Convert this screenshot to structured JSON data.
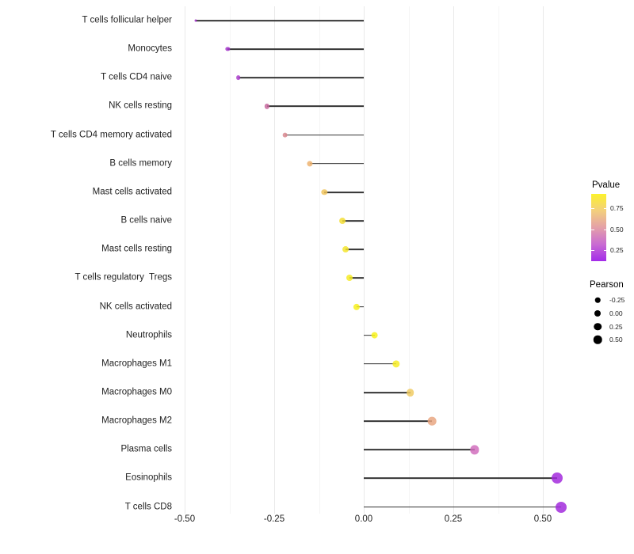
{
  "chart_data": {
    "type": "scatter",
    "style": "lollipop",
    "title": "",
    "xlabel": "",
    "ylabel": "",
    "grid": "vertical major and minor, no axis lines",
    "xlim": [
      -0.595,
      0.566
    ],
    "x_ticks": [
      -0.5,
      -0.25,
      0.0,
      0.25,
      0.5
    ],
    "x_tick_labels": [
      "-0.50",
      "-0.25",
      "0.00",
      "0.25",
      "0.50"
    ],
    "x_minor_ticks": [
      -0.375,
      -0.125,
      0.125,
      0.375
    ],
    "stem_color": "#333333",
    "categories": [
      "T cells follicular helper",
      "Monocytes",
      "T cells CD4 naive",
      "NK cells resting",
      "T cells CD4 memory activated",
      "B cells memory",
      "Mast cells activated",
      "B cells naive",
      "Mast cells resting",
      "T cells regulatory  Tregs",
      "NK cells activated",
      "Neutrophils",
      "Macrophages M1",
      "Macrophages M0",
      "Macrophages M2",
      "Plasma cells",
      "Eosinophils",
      "T cells CD8"
    ],
    "points": [
      {
        "label": "T cells follicular helper",
        "pearson": -0.47,
        "color": "#9E2BC6",
        "size": 3
      },
      {
        "label": "Monocytes",
        "pearson": -0.38,
        "color": "#A535CC",
        "size": 5.3
      },
      {
        "label": "T cells CD4 naive",
        "pearson": -0.35,
        "color": "#A93BCB",
        "size": 5.7
      },
      {
        "label": "NK cells resting",
        "pearson": -0.27,
        "color": "#C7689D",
        "size": 6.3
      },
      {
        "label": "T cells CD4 memory activated",
        "pearson": -0.22,
        "color": "#D8878E",
        "size": 6.7
      },
      {
        "label": "B cells memory",
        "pearson": -0.15,
        "color": "#EDB16E",
        "size": 7.2
      },
      {
        "label": "Mast cells activated",
        "pearson": -0.11,
        "color": "#EFC35B",
        "size": 7.4
      },
      {
        "label": "B cells naive",
        "pearson": -0.06,
        "color": "#F3DE35",
        "size": 7.9
      },
      {
        "label": "Mast cells resting",
        "pearson": -0.05,
        "color": "#F4E52C",
        "size": 7.9
      },
      {
        "label": "T cells regulatory  Tregs",
        "pearson": -0.04,
        "color": "#F6EB24",
        "size": 8
      },
      {
        "label": "NK cells activated",
        "pearson": -0.02,
        "color": "#F7EF1C",
        "size": 8.2
      },
      {
        "label": "Neutrophils",
        "pearson": 0.03,
        "color": "#F8F219",
        "size": 8.8
      },
      {
        "label": "Macrophages M1",
        "pearson": 0.09,
        "color": "#F6EC22",
        "size": 9.3
      },
      {
        "label": "Macrophages M0",
        "pearson": 0.13,
        "color": "#F0CB62",
        "size": 9.7
      },
      {
        "label": "Macrophages M2",
        "pearson": 0.19,
        "color": "#E8A681",
        "size": 10.7
      },
      {
        "label": "Plasma cells",
        "pearson": 0.31,
        "color": "#D06CBC",
        "size": 11.3
      },
      {
        "label": "Eosinophils",
        "pearson": 0.54,
        "color": "#A229DD",
        "size": 14
      },
      {
        "label": "T cells CD8",
        "pearson": 0.55,
        "color": "#A129DD",
        "size": 14
      }
    ]
  },
  "legends": {
    "pvalue": {
      "title": "Pvalue",
      "tick_labels": [
        "0.75",
        "0.50",
        "0.25"
      ],
      "tick_offsets": [
        18,
        44.5,
        71
      ],
      "gradient_stops": [
        "#FCF22C",
        "#F3CF7D",
        "#E4A0A8",
        "#C96BD2",
        "#A32BE9"
      ]
    },
    "pearson": {
      "title": "Pearson",
      "dot_color": "#000000",
      "items": [
        {
          "label": "-0.25",
          "diameter": 6.5
        },
        {
          "label": "0.00",
          "diameter": 8
        },
        {
          "label": "0.25",
          "diameter": 9.5
        },
        {
          "label": "0.50",
          "diameter": 10.5
        }
      ]
    }
  }
}
